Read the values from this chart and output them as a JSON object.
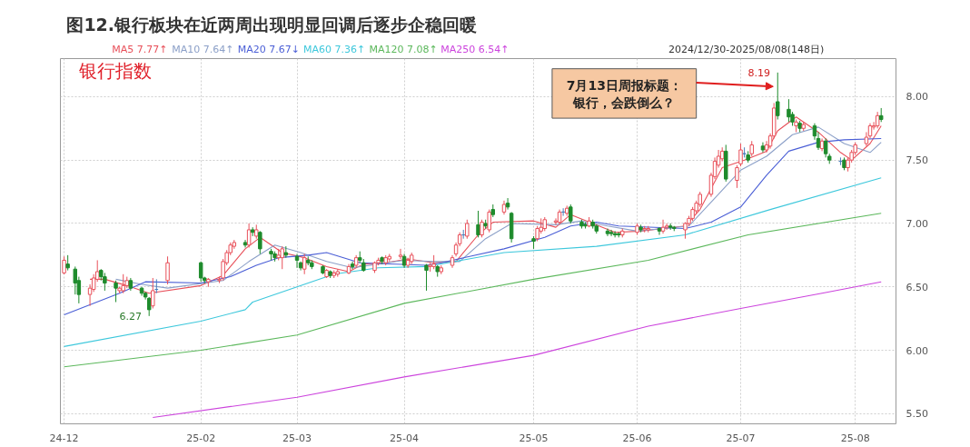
{
  "chart_data": {
    "type": "candlestick",
    "title": "图12.银行板块在近两周出现明显回调后逐步企稳回暖",
    "x": [
      "2024-12-30",
      "2024-12-31",
      "2025-01-02",
      "2025-01-03",
      "2025-01-06",
      "2025-01-07",
      "2025-01-08",
      "2025-01-09",
      "2025-01-10",
      "2025-01-13",
      "2025-01-14",
      "2025-01-15",
      "2025-01-16",
      "2025-01-17",
      "2025-01-20",
      "2025-01-21",
      "2025-01-22",
      "2025-01-23",
      "2025-01-24",
      "2025-01-27",
      "2025-02-05",
      "2025-02-06",
      "2025-02-07",
      "2025-02-10",
      "2025-02-11",
      "2025-02-12",
      "2025-02-13",
      "2025-02-14",
      "2025-02-17",
      "2025-02-18",
      "2025-02-19",
      "2025-02-20",
      "2025-02-21",
      "2025-02-24",
      "2025-02-25",
      "2025-02-26",
      "2025-02-27",
      "2025-02-28",
      "2025-03-03",
      "2025-03-04",
      "2025-03-05",
      "2025-03-06",
      "2025-03-07",
      "2025-03-10",
      "2025-03-11",
      "2025-03-12",
      "2025-03-13",
      "2025-03-14",
      "2025-03-17",
      "2025-03-18",
      "2025-03-19",
      "2025-03-20",
      "2025-03-21",
      "2025-03-24",
      "2025-03-25",
      "2025-03-26",
      "2025-03-27",
      "2025-03-28",
      "2025-03-31",
      "2025-04-01",
      "2025-04-02",
      "2025-04-03",
      "2025-04-07",
      "2025-04-08",
      "2025-04-09",
      "2025-04-10",
      "2025-04-11",
      "2025-04-14",
      "2025-04-15",
      "2025-04-16",
      "2025-04-17",
      "2025-04-18",
      "2025-04-21",
      "2025-04-22",
      "2025-04-23",
      "2025-04-24",
      "2025-04-25",
      "2025-04-28",
      "2025-04-29",
      "2025-04-30",
      "2025-05-06",
      "2025-05-07",
      "2025-05-08",
      "2025-05-09",
      "2025-05-12",
      "2025-05-13",
      "2025-05-14",
      "2025-05-15",
      "2025-05-16",
      "2025-05-19",
      "2025-05-20",
      "2025-05-21",
      "2025-05-22",
      "2025-05-23",
      "2025-05-26",
      "2025-05-27",
      "2025-05-28",
      "2025-05-29",
      "2025-05-30",
      "2025-06-03",
      "2025-06-04",
      "2025-06-05",
      "2025-06-06",
      "2025-06-09",
      "2025-06-10",
      "2025-06-11",
      "2025-06-12",
      "2025-06-13",
      "2025-06-16",
      "2025-06-17",
      "2025-06-18",
      "2025-06-19",
      "2025-06-20",
      "2025-06-23",
      "2025-06-24",
      "2025-06-25",
      "2025-06-26",
      "2025-06-27",
      "2025-06-30",
      "2025-07-01",
      "2025-07-02",
      "2025-07-03",
      "2025-07-04",
      "2025-07-07",
      "2025-07-08",
      "2025-07-09",
      "2025-07-10",
      "2025-07-11",
      "2025-07-14",
      "2025-07-15",
      "2025-07-16",
      "2025-07-17",
      "2025-07-18",
      "2025-07-21",
      "2025-07-22",
      "2025-07-23",
      "2025-07-24",
      "2025-07-25",
      "2025-07-28",
      "2025-07-29",
      "2025-07-30",
      "2025-07-31",
      "2025-08-01",
      "2025-08-04",
      "2025-08-05",
      "2025-08-06",
      "2025-08-07",
      "2025-08-08"
    ],
    "ohlc": [
      [
        6.61,
        6.74,
        6.6,
        6.71
      ],
      [
        6.68,
        6.75,
        6.63,
        6.65
      ],
      [
        6.64,
        6.66,
        6.44,
        6.53
      ],
      [
        6.55,
        6.58,
        6.37,
        6.44
      ],
      [
        6.44,
        6.52,
        6.35,
        6.49
      ],
      [
        6.48,
        6.6,
        6.46,
        6.57
      ],
      [
        6.56,
        6.71,
        6.54,
        6.62
      ],
      [
        6.63,
        6.64,
        6.55,
        6.58
      ],
      [
        6.58,
        6.61,
        6.47,
        6.53
      ],
      [
        6.53,
        6.55,
        6.38,
        6.49
      ],
      [
        6.47,
        6.5,
        6.45,
        6.49
      ],
      [
        6.47,
        6.6,
        6.45,
        6.51
      ],
      [
        6.51,
        6.58,
        6.49,
        6.55
      ],
      [
        6.55,
        6.57,
        6.47,
        6.49
      ],
      [
        6.49,
        6.5,
        6.43,
        6.45
      ],
      [
        6.45,
        6.46,
        6.4,
        6.42
      ],
      [
        6.41,
        6.42,
        6.27,
        6.32
      ],
      [
        6.35,
        6.57,
        6.33,
        6.47
      ],
      [
        6.48,
        6.56,
        6.45,
        6.48
      ],
      [
        6.55,
        6.74,
        6.52,
        6.69
      ],
      [
        6.69,
        6.7,
        6.54,
        6.57
      ],
      [
        6.57,
        6.58,
        6.53,
        6.55
      ],
      [
        6.54,
        6.57,
        6.5,
        6.56
      ],
      [
        6.55,
        6.58,
        6.53,
        6.56
      ],
      [
        6.57,
        6.72,
        6.55,
        6.7
      ],
      [
        6.69,
        6.79,
        6.67,
        6.77
      ],
      [
        6.77,
        6.85,
        6.75,
        6.83
      ],
      [
        6.82,
        6.87,
        6.8,
        6.85
      ],
      [
        6.85,
        6.87,
        6.81,
        6.83
      ],
      [
        6.83,
        7.0,
        6.81,
        6.95
      ],
      [
        6.95,
        6.97,
        6.9,
        6.93
      ],
      [
        6.9,
        6.99,
        6.88,
        6.95
      ],
      [
        6.93,
        6.94,
        6.76,
        6.8
      ],
      [
        6.78,
        6.8,
        6.71,
        6.76
      ],
      [
        6.76,
        6.78,
        6.7,
        6.73
      ],
      [
        6.73,
        6.8,
        6.71,
        6.75
      ],
      [
        6.73,
        6.82,
        6.64,
        6.8
      ],
      [
        6.77,
        6.82,
        6.73,
        6.75
      ],
      [
        6.74,
        6.76,
        6.65,
        6.71
      ],
      [
        6.69,
        6.7,
        6.63,
        6.65
      ],
      [
        6.64,
        6.76,
        6.6,
        6.73
      ],
      [
        6.71,
        6.74,
        6.67,
        6.69
      ],
      [
        6.69,
        6.71,
        6.64,
        6.66
      ],
      [
        6.66,
        6.67,
        6.6,
        6.61
      ],
      [
        6.58,
        6.64,
        6.57,
        6.63
      ],
      [
        6.62,
        6.63,
        6.57,
        6.59
      ],
      [
        6.59,
        6.63,
        6.57,
        6.61
      ],
      [
        6.6,
        6.64,
        6.58,
        6.62
      ],
      [
        6.61,
        6.68,
        6.6,
        6.66
      ],
      [
        6.68,
        6.7,
        6.64,
        6.66
      ],
      [
        6.67,
        6.75,
        6.65,
        6.73
      ],
      [
        6.73,
        6.78,
        6.69,
        6.71
      ],
      [
        6.69,
        6.72,
        6.62,
        6.63
      ],
      [
        6.63,
        6.7,
        6.61,
        6.69
      ],
      [
        6.69,
        6.73,
        6.67,
        6.71
      ],
      [
        6.73,
        6.74,
        6.68,
        6.7
      ],
      [
        6.69,
        6.75,
        6.67,
        6.73
      ],
      [
        6.72,
        6.76,
        6.7,
        6.74
      ],
      [
        6.74,
        6.8,
        6.72,
        6.75
      ],
      [
        6.74,
        6.76,
        6.65,
        6.67
      ],
      [
        6.67,
        6.73,
        6.65,
        6.71
      ],
      [
        6.7,
        6.77,
        6.68,
        6.75
      ],
      [
        6.67,
        6.68,
        6.47,
        6.63
      ],
      [
        6.66,
        6.69,
        6.62,
        6.67
      ],
      [
        6.66,
        6.75,
        6.64,
        6.68
      ],
      [
        6.66,
        6.67,
        6.58,
        6.62
      ],
      [
        6.62,
        6.67,
        6.6,
        6.65
      ],
      [
        6.67,
        6.75,
        6.65,
        6.73
      ],
      [
        6.76,
        6.85,
        6.74,
        6.83
      ],
      [
        6.84,
        6.93,
        6.82,
        6.91
      ],
      [
        6.91,
        6.95,
        6.88,
        6.91
      ],
      [
        6.9,
        7.03,
        6.88,
        7.0
      ],
      [
        6.99,
        7.1,
        6.89,
        6.91
      ],
      [
        6.91,
        7.03,
        6.89,
        7.01
      ],
      [
        7.0,
        7.03,
        6.96,
        6.98
      ],
      [
        6.95,
        7.11,
        6.93,
        7.09
      ],
      [
        7.11,
        7.15,
        7.05,
        7.07
      ],
      [
        7.09,
        7.18,
        7.07,
        7.15
      ],
      [
        7.16,
        7.2,
        7.11,
        7.13
      ],
      [
        7.08,
        7.09,
        6.85,
        6.88
      ],
      [
        6.88,
        6.9,
        6.8,
        6.86
      ],
      [
        6.88,
        6.98,
        6.86,
        6.96
      ],
      [
        6.94,
        7.04,
        6.92,
        6.97
      ],
      [
        6.96,
        7.05,
        6.94,
        7.03
      ],
      [
        7.01,
        7.04,
        6.99,
        7.02
      ],
      [
        7.01,
        7.11,
        6.99,
        7.09
      ],
      [
        7.09,
        7.12,
        7.06,
        7.09
      ],
      [
        7.08,
        7.14,
        7.06,
        7.12
      ],
      [
        7.13,
        7.15,
        7.0,
        7.02
      ],
      [
        7.01,
        7.03,
        6.96,
        6.98
      ],
      [
        6.99,
        7.01,
        6.96,
        6.98
      ],
      [
        6.98,
        7.05,
        6.97,
        7.02
      ],
      [
        7.01,
        7.03,
        6.96,
        6.98
      ],
      [
        6.98,
        6.99,
        6.92,
        6.94
      ],
      [
        6.94,
        6.96,
        6.9,
        6.92
      ],
      [
        6.93,
        6.95,
        6.9,
        6.92
      ],
      [
        6.92,
        6.94,
        6.89,
        6.91
      ],
      [
        6.92,
        6.93,
        6.89,
        6.91
      ],
      [
        6.91,
        6.96,
        6.89,
        6.94
      ],
      [
        6.93,
        7.0,
        6.91,
        6.98
      ],
      [
        6.97,
        6.99,
        6.93,
        6.95
      ],
      [
        6.95,
        6.98,
        6.93,
        6.96
      ],
      [
        6.95,
        6.98,
        6.93,
        6.96
      ],
      [
        6.96,
        6.97,
        6.91,
        6.94
      ],
      [
        6.94,
        7.03,
        6.92,
        6.97
      ],
      [
        6.97,
        7.0,
        6.95,
        6.98
      ],
      [
        6.98,
        7.0,
        6.95,
        6.97
      ],
      [
        6.97,
        6.98,
        6.94,
        6.96
      ],
      [
        6.95,
        7.01,
        6.88,
        7.0
      ],
      [
        7.0,
        7.06,
        6.98,
        7.04
      ],
      [
        7.04,
        7.13,
        7.02,
        7.11
      ],
      [
        7.1,
        7.18,
        7.08,
        7.16
      ],
      [
        7.15,
        7.25,
        7.13,
        7.23
      ],
      [
        7.23,
        7.4,
        7.21,
        7.38
      ],
      [
        7.37,
        7.52,
        7.35,
        7.49
      ],
      [
        7.46,
        7.58,
        7.44,
        7.53
      ],
      [
        7.51,
        7.6,
        7.49,
        7.57
      ],
      [
        7.57,
        7.62,
        7.33,
        7.35
      ],
      [
        7.34,
        7.46,
        7.28,
        7.44
      ],
      [
        7.47,
        7.63,
        7.45,
        7.58
      ],
      [
        7.55,
        7.6,
        7.52,
        7.55
      ],
      [
        7.54,
        7.57,
        7.48,
        7.5
      ],
      [
        7.55,
        7.65,
        7.53,
        7.62
      ],
      [
        7.61,
        7.64,
        7.56,
        7.58
      ],
      [
        7.58,
        7.65,
        7.56,
        7.62
      ],
      [
        7.61,
        7.71,
        7.59,
        7.69
      ],
      [
        7.69,
        7.95,
        7.67,
        7.91
      ],
      [
        7.96,
        8.19,
        7.82,
        7.85
      ],
      [
        7.9,
        7.98,
        7.8,
        7.84
      ],
      [
        7.86,
        7.88,
        7.77,
        7.8
      ],
      [
        7.77,
        7.82,
        7.72,
        7.8
      ],
      [
        7.79,
        7.81,
        7.72,
        7.75
      ],
      [
        7.75,
        7.8,
        7.73,
        7.78
      ],
      [
        7.77,
        7.79,
        7.66,
        7.69
      ],
      [
        7.67,
        7.72,
        7.58,
        7.6
      ],
      [
        7.59,
        7.67,
        7.57,
        7.65
      ],
      [
        7.65,
        7.67,
        7.52,
        7.55
      ],
      [
        7.53,
        7.55,
        7.47,
        7.5
      ],
      [
        7.49,
        7.52,
        7.46,
        7.49
      ],
      [
        7.5,
        7.52,
        7.42,
        7.44
      ],
      [
        7.44,
        7.52,
        7.41,
        7.5
      ],
      [
        7.5,
        7.58,
        7.48,
        7.56
      ],
      [
        7.56,
        7.64,
        7.54,
        7.62
      ],
      [
        7.63,
        7.72,
        7.61,
        7.68
      ],
      [
        7.69,
        7.79,
        7.67,
        7.77
      ],
      [
        7.76,
        7.8,
        7.74,
        7.77
      ],
      [
        7.77,
        7.88,
        7.75,
        7.85
      ],
      [
        7.85,
        7.91,
        7.8,
        7.82
      ]
    ],
    "series": [
      {
        "name": "MA5 7.77↑",
        "type": "line",
        "color": "#e8505a",
        "x": [
          "2025-01-06",
          "2025-01-10",
          "2025-01-16",
          "2025-01-22",
          "2025-02-05",
          "2025-02-11",
          "2025-02-17",
          "2025-02-21",
          "2025-02-27",
          "2025-03-05",
          "2025-03-11",
          "2025-03-17",
          "2025-03-21",
          "2025-03-27",
          "2025-04-02",
          "2025-04-09",
          "2025-04-15",
          "2025-04-21",
          "2025-04-25",
          "2025-05-06",
          "2025-05-12",
          "2025-05-16",
          "2025-05-22",
          "2025-05-28",
          "2025-06-04",
          "2025-06-10",
          "2025-06-16",
          "2025-06-20",
          "2025-06-26",
          "2025-07-02",
          "2025-07-08",
          "2025-07-11",
          "2025-07-16",
          "2025-07-22",
          "2025-07-28",
          "2025-07-31",
          "2025-08-05",
          "2025-08-08"
        ],
        "values": [
          6.56,
          6.56,
          6.51,
          6.45,
          6.51,
          6.59,
          6.8,
          6.89,
          6.77,
          6.73,
          6.66,
          6.62,
          6.68,
          6.69,
          6.72,
          6.69,
          6.7,
          6.91,
          7.01,
          7.02,
          6.97,
          7.07,
          7.0,
          6.93,
          6.94,
          6.96,
          6.98,
          7.11,
          7.44,
          7.5,
          7.57,
          7.73,
          7.84,
          7.72,
          7.56,
          7.5,
          7.63,
          7.77
        ]
      },
      {
        "name": "MA10 7.64↑",
        "type": "line",
        "color": "#8ca0c8",
        "x": [
          "2025-01-13",
          "2025-01-20",
          "2025-01-27",
          "2025-02-11",
          "2025-02-18",
          "2025-02-25",
          "2025-03-04",
          "2025-03-11",
          "2025-03-18",
          "2025-03-25",
          "2025-04-01",
          "2025-04-09",
          "2025-04-16",
          "2025-04-23",
          "2025-04-30",
          "2025-05-12",
          "2025-05-19",
          "2025-05-26",
          "2025-06-03",
          "2025-06-10",
          "2025-06-17",
          "2025-06-24",
          "2025-07-01",
          "2025-07-08",
          "2025-07-15",
          "2025-07-22",
          "2025-07-29",
          "2025-08-05",
          "2025-08-08"
        ],
        "values": [
          6.56,
          6.52,
          6.49,
          6.55,
          6.7,
          6.83,
          6.77,
          6.7,
          6.65,
          6.68,
          6.71,
          6.7,
          6.7,
          6.88,
          7.0,
          6.99,
          7.02,
          6.98,
          6.94,
          6.96,
          6.98,
          7.2,
          7.42,
          7.53,
          7.7,
          7.76,
          7.63,
          7.56,
          7.64
        ]
      },
      {
        "name": "MA20 7.67↓",
        "type": "line",
        "color": "#4b5fd6",
        "x": [
          "2024-12-30",
          "2025-01-14",
          "2025-01-21",
          "2025-02-05",
          "2025-02-13",
          "2025-02-20",
          "2025-02-26",
          "2025-03-06",
          "2025-03-11",
          "2025-03-20",
          "2025-04-07",
          "2025-04-11",
          "2025-04-28",
          "2025-05-09",
          "2025-05-16",
          "2025-05-23",
          "2025-05-29",
          "2025-06-16",
          "2025-06-23",
          "2025-07-01",
          "2025-07-08",
          "2025-07-14",
          "2025-07-22",
          "2025-07-29",
          "2025-08-08"
        ],
        "values": [
          6.28,
          6.45,
          6.54,
          6.53,
          6.58,
          6.67,
          6.73,
          6.75,
          6.77,
          6.69,
          6.67,
          6.69,
          6.8,
          6.89,
          6.98,
          7.01,
          6.98,
          6.96,
          7.01,
          7.13,
          7.38,
          7.57,
          7.64,
          7.66,
          7.67
        ]
      },
      {
        "name": "MA60 7.36↑",
        "type": "line",
        "color": "#3ec8dc",
        "x": [
          "2024-12-30",
          "2025-02-05",
          "2025-02-17",
          "2025-02-19",
          "2025-03-03",
          "2025-03-13",
          "2025-03-25",
          "2025-04-07",
          "2025-04-28",
          "2025-05-23",
          "2025-06-16",
          "2025-07-09",
          "2025-08-08"
        ],
        "values": [
          6.03,
          6.23,
          6.32,
          6.38,
          6.5,
          6.6,
          6.65,
          6.66,
          6.77,
          6.82,
          6.91,
          7.11,
          7.36
        ]
      },
      {
        "name": "MA120 7.08↑",
        "type": "line",
        "color": "#5cb85c",
        "x": [
          "2024-12-30",
          "2025-02-05",
          "2025-03-03",
          "2025-04-01",
          "2025-05-06",
          "2025-06-06",
          "2025-07-03",
          "2025-08-08"
        ],
        "values": [
          5.87,
          6.0,
          6.12,
          6.37,
          6.56,
          6.71,
          6.91,
          7.08
        ]
      },
      {
        "name": "MA250 6.54↑",
        "type": "line",
        "color": "#cc44dd",
        "x": [
          "2025-01-23",
          "2025-03-03",
          "2025-04-01",
          "2025-05-06",
          "2025-06-06",
          "2025-07-01",
          "2025-07-23",
          "2025-08-08"
        ],
        "values": [
          5.47,
          5.63,
          5.79,
          5.96,
          6.19,
          6.33,
          6.45,
          6.54
        ]
      }
    ],
    "xlim": [
      "2024-12-29",
      "2025-08-12"
    ],
    "xticks": [
      {
        "value": "2024-12-30",
        "label": "24-12"
      },
      {
        "value": "2025-02-05",
        "label": "25-02"
      },
      {
        "value": "2025-03-03",
        "label": "25-03"
      },
      {
        "value": "2025-04-01",
        "label": "25-04"
      },
      {
        "value": "2025-05-06",
        "label": "25-05"
      },
      {
        "value": "2025-06-03",
        "label": "25-06"
      },
      {
        "value": "2025-07-01",
        "label": "25-07"
      },
      {
        "value": "2025-08-01",
        "label": "25-08"
      }
    ],
    "ylim": [
      5.42,
      8.3
    ],
    "yticks": [
      {
        "value": 5.5,
        "label": "5.50"
      },
      {
        "value": 6.0,
        "label": "6.00"
      },
      {
        "value": 6.5,
        "label": "6.50"
      },
      {
        "value": 7.0,
        "label": "7.00"
      },
      {
        "value": 7.5,
        "label": "7.50"
      },
      {
        "value": 8.0,
        "label": "8.00"
      }
    ],
    "grid": true,
    "legend": "top left",
    "line_style": "solid",
    "annotations": [
      "银行指数",
      "2024/12/30-2025/08/08(148日)",
      "7月13日周报标题：银行，会跌倒么？",
      "8.19",
      "6.27"
    ]
  }
}
